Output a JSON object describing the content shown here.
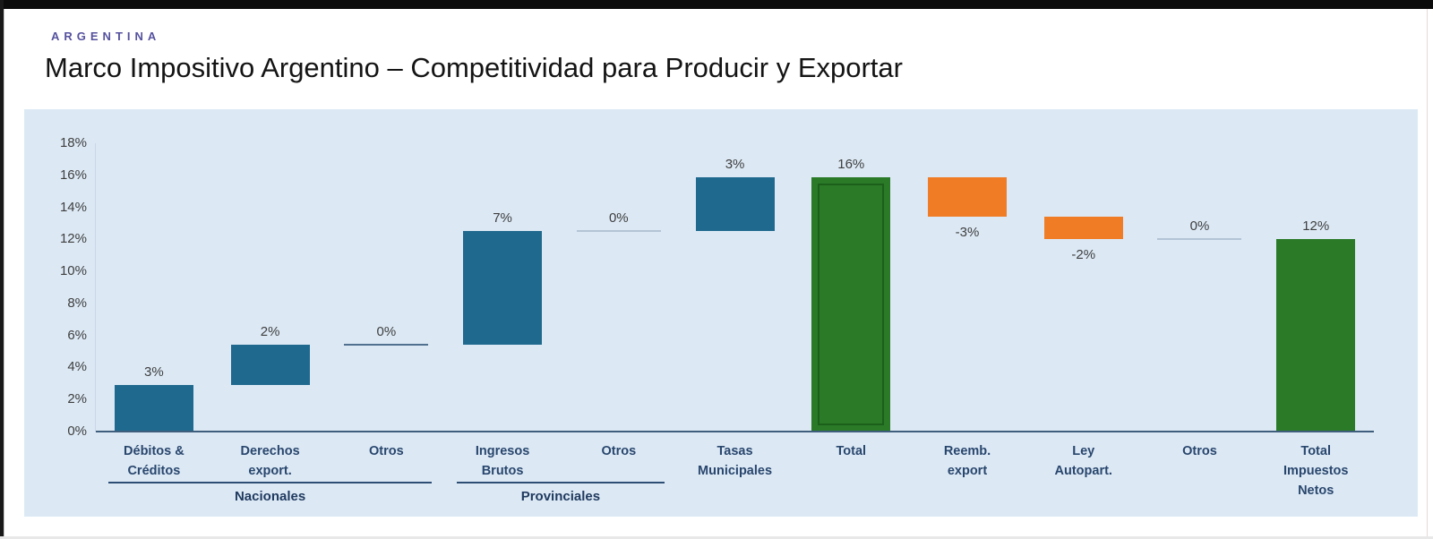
{
  "header": {
    "kicker": "ARGENTINA",
    "title": "Marco Impositivo Argentino – Competitividad para Producir y Exportar"
  },
  "chart_data": {
    "type": "bar",
    "subtype": "waterfall",
    "title": "Marco Impositivo Argentino – Competitividad para Producir y Exportar",
    "xlabel": "",
    "ylabel": "",
    "ylim": [
      0,
      18
    ],
    "ytick_step": 2,
    "yticks": [
      "0%",
      "2%",
      "4%",
      "6%",
      "8%",
      "10%",
      "12%",
      "14%",
      "16%",
      "18%"
    ],
    "grid": false,
    "legend": false,
    "plot_background": "#dce9f5",
    "colors": {
      "increase": "#20698e",
      "decrease": "#f07d26",
      "total": "#2a7a28",
      "zero_line_dark": "#51708f",
      "zero_line_light": "#b3c4d6",
      "axis_line": "#3f5d7c",
      "tick_label": "#3e3e3e",
      "category_label": "#29466d"
    },
    "categories": [
      "Débitos & Créditos",
      "Derechos export.",
      "Otros",
      "Ingresos Brutos",
      "Otros",
      "Tasas Municipales",
      "Total",
      "Reemb. export",
      "Ley Autopart.",
      "Otros",
      "Total Impuestos Netos"
    ],
    "items": [
      {
        "label": "Débitos & Créditos",
        "label_lines": [
          "Débitos &",
          "Créditos"
        ],
        "display": "3%",
        "value": 3,
        "kind": "increase",
        "start": 0,
        "end": 2.9
      },
      {
        "label": "Derechos export.",
        "label_lines": [
          "Derechos",
          "export."
        ],
        "display": "2%",
        "value": 2,
        "kind": "increase",
        "start": 2.9,
        "end": 5.4
      },
      {
        "label": "Otros",
        "label_lines": [
          "Otros"
        ],
        "display": "0%",
        "value": 0,
        "kind": "zero",
        "start": 5.4,
        "end": 5.4,
        "line_shade": "dark"
      },
      {
        "label": "Ingresos Brutos",
        "label_lines": [
          "Ingresos",
          "Brutos"
        ],
        "display": "7%",
        "value": 7,
        "kind": "increase",
        "start": 5.4,
        "end": 12.5
      },
      {
        "label": "Otros",
        "label_lines": [
          "Otros"
        ],
        "display": "0%",
        "value": 0,
        "kind": "zero",
        "start": 12.5,
        "end": 12.5,
        "line_shade": "light"
      },
      {
        "label": "Tasas Municipales",
        "label_lines": [
          "Tasas",
          "Municipales"
        ],
        "display": "3%",
        "value": 3,
        "kind": "increase",
        "start": 12.5,
        "end": 15.9
      },
      {
        "label": "Total",
        "label_lines": [
          "Total"
        ],
        "display": "16%",
        "value": 16,
        "kind": "total",
        "start": 0,
        "end": 15.9,
        "inset_outline": true
      },
      {
        "label": "Reemb. export",
        "label_lines": [
          "Reemb.",
          "export"
        ],
        "display": "-3%",
        "value": -3,
        "kind": "decrease",
        "start": 15.9,
        "end": 13.4
      },
      {
        "label": "Ley Autopart.",
        "label_lines": [
          "Ley",
          "Autopart."
        ],
        "display": "-2%",
        "value": -2,
        "kind": "decrease",
        "start": 13.4,
        "end": 12.0
      },
      {
        "label": "Otros",
        "label_lines": [
          "Otros"
        ],
        "display": "0%",
        "value": 0,
        "kind": "zero",
        "start": 12.0,
        "end": 12.0,
        "line_shade": "light"
      },
      {
        "label": "Total Impuestos Netos",
        "label_lines": [
          "Total",
          "Impuestos",
          "Netos"
        ],
        "display": "12%",
        "value": 12,
        "kind": "total",
        "start": 0,
        "end": 12.0
      }
    ],
    "groups": [
      {
        "label": "Nacionales",
        "from": 0,
        "to": 2
      },
      {
        "label": "Provinciales",
        "from": 3,
        "to": 4
      }
    ]
  }
}
